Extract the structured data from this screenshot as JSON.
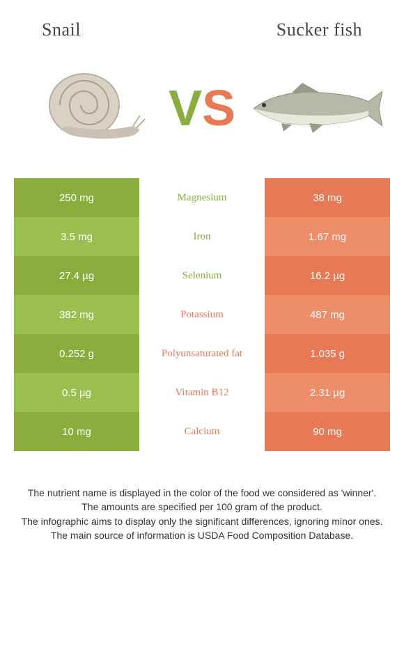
{
  "header": {
    "left_title": "Snail",
    "right_title": "Sucker fish"
  },
  "vs": {
    "v": "V",
    "s": "S"
  },
  "colors": {
    "left_primary": "#8aad3e",
    "left_alt": "#9bbf4f",
    "right_primary": "#e77a54",
    "right_alt": "#ed8d6a",
    "background": "#ffffff"
  },
  "table": {
    "rows": [
      {
        "left": "250 mg",
        "nutrient": "Magnesium",
        "right": "38 mg",
        "winner": "left"
      },
      {
        "left": "3.5 mg",
        "nutrient": "Iron",
        "right": "1.67 mg",
        "winner": "left"
      },
      {
        "left": "27.4 µg",
        "nutrient": "Selenium",
        "right": "16.2 µg",
        "winner": "left"
      },
      {
        "left": "382 mg",
        "nutrient": "Potassium",
        "right": "487 mg",
        "winner": "right"
      },
      {
        "left": "0.252 g",
        "nutrient": "Polyunsaturated fat",
        "right": "1.035 g",
        "winner": "right"
      },
      {
        "left": "0.5 µg",
        "nutrient": "Vitamin B12",
        "right": "2.31 µg",
        "winner": "right"
      },
      {
        "left": "10 mg",
        "nutrient": "Calcium",
        "right": "90 mg",
        "winner": "right"
      }
    ]
  },
  "footer": {
    "line1": "The nutrient name is displayed in the color of the food we considered as 'winner'.",
    "line2": "The amounts are specified per 100 gram of the product.",
    "line3": "The infographic aims to display only the significant differences, ignoring minor ones.",
    "line4": "The main source of information is USDA Food Composition Database."
  }
}
